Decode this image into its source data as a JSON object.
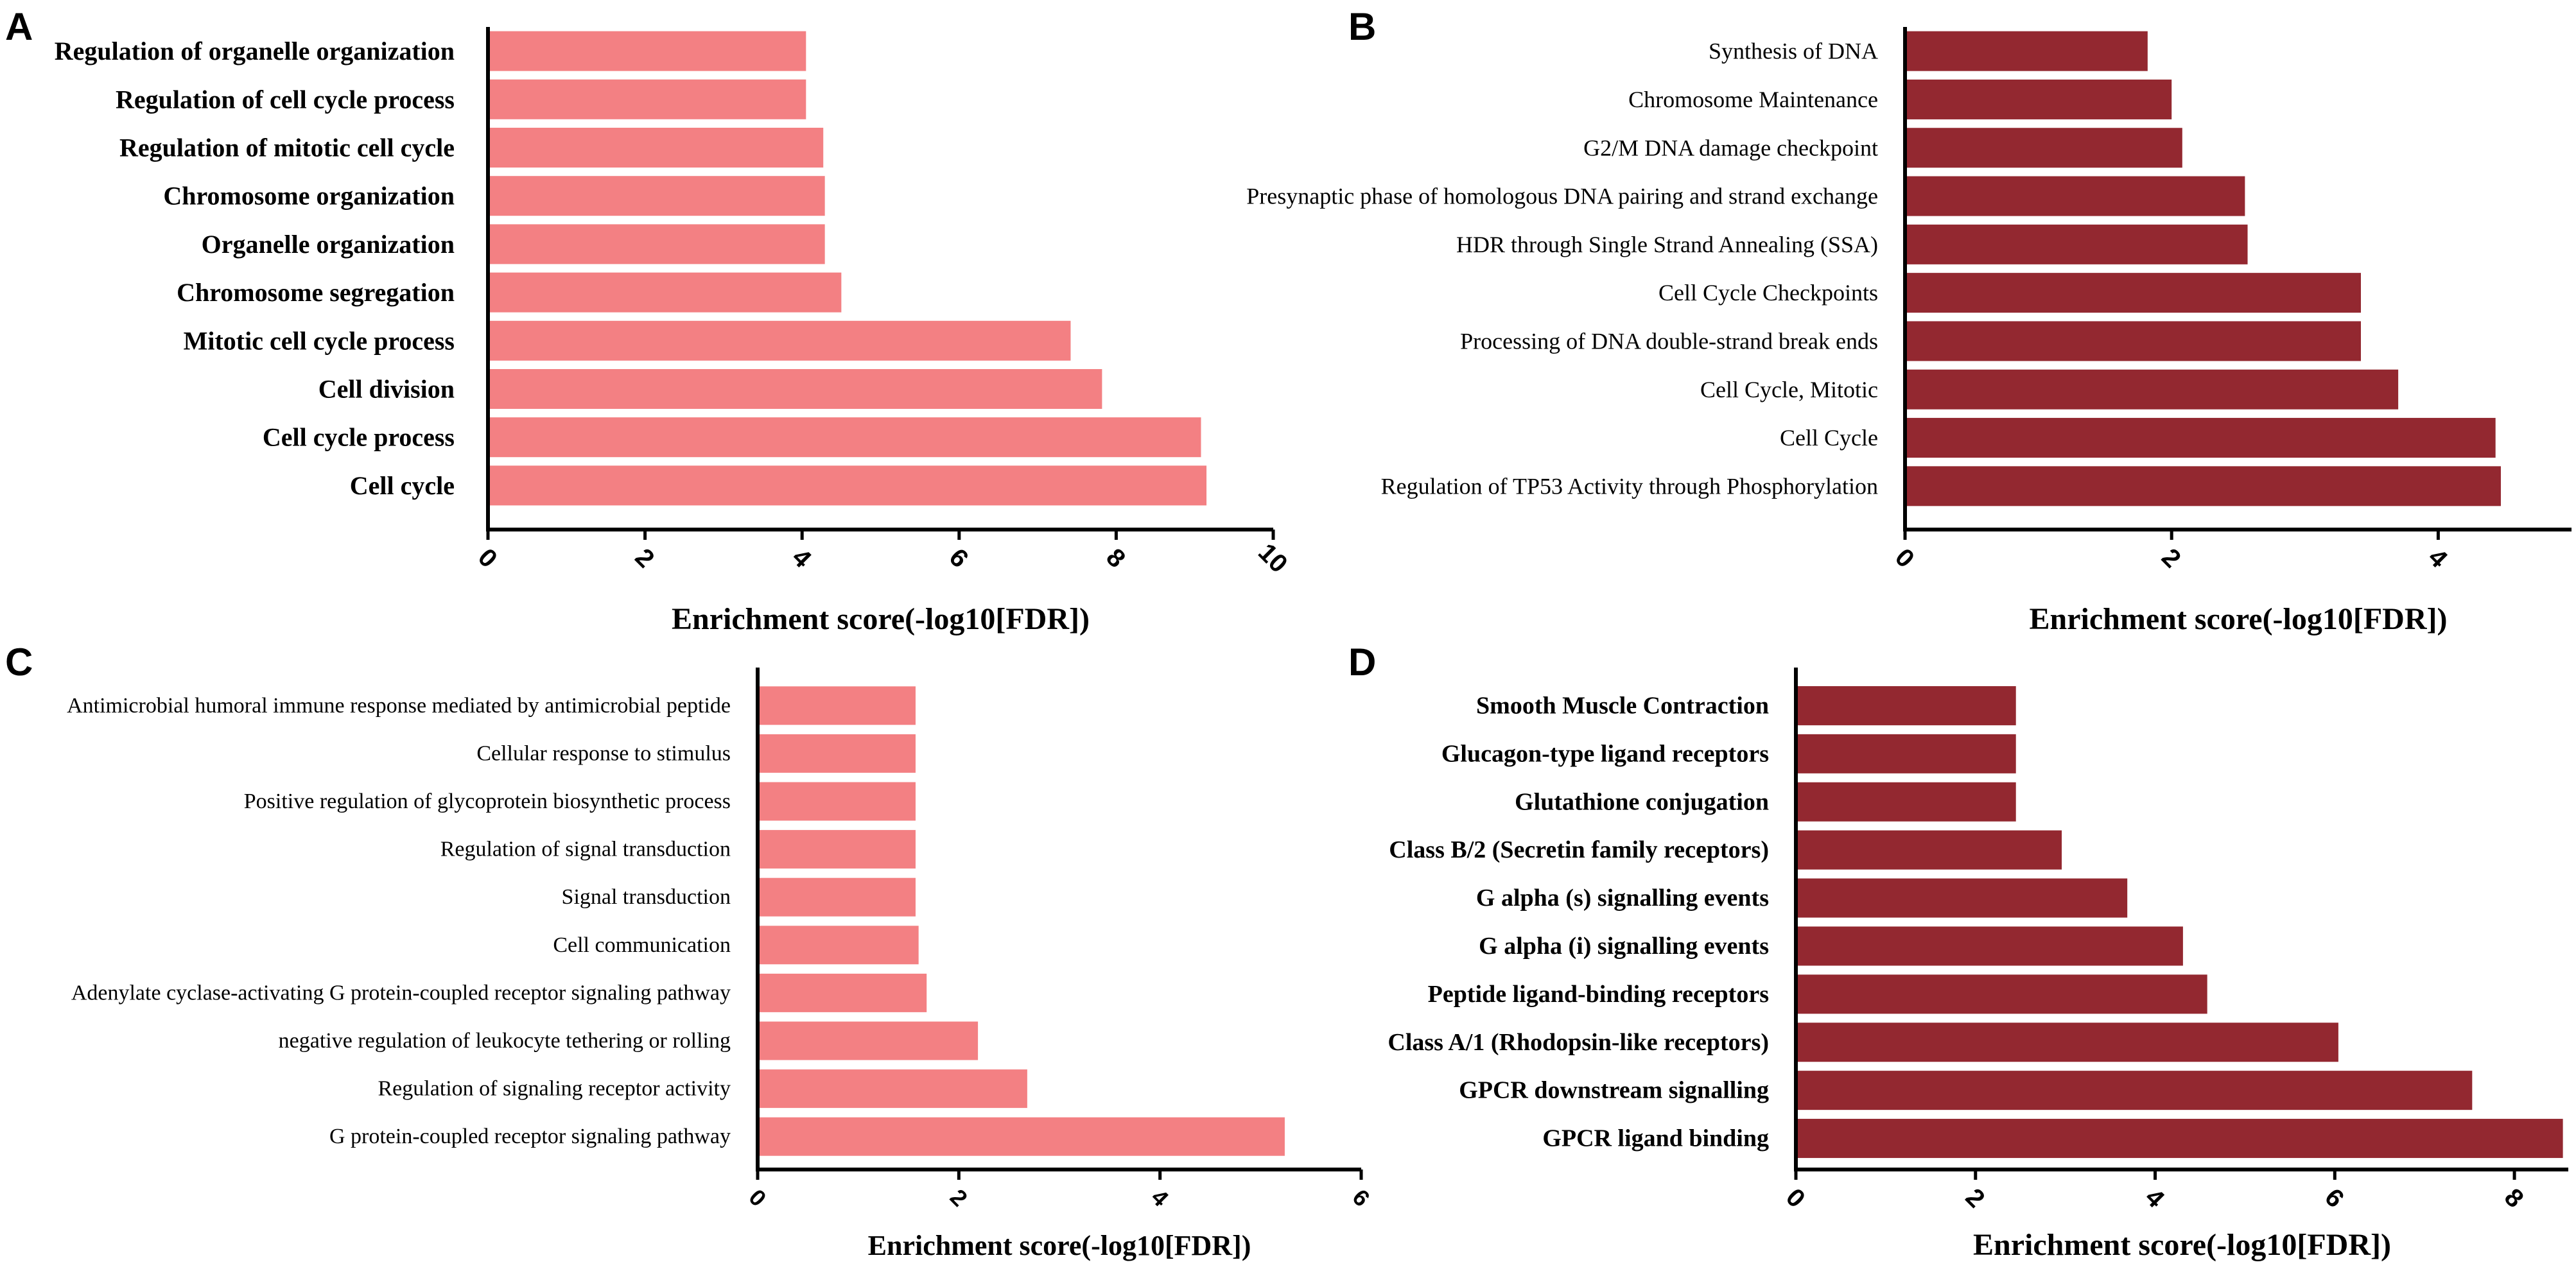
{
  "chart_data": [
    {
      "panel": "A",
      "type": "bar",
      "orientation": "horizontal",
      "bar_color": "#f38083",
      "categories": [
        "Regulation of organelle organization",
        "Regulation of cell cycle process",
        "Regulation of mitotic cell cycle",
        "Chromosome organization",
        "Organelle organization",
        "Chromosome segregation",
        "Mitotic cell cycle process",
        "Cell division",
        "Cell cycle process",
        "Cell cycle"
      ],
      "values": [
        4.05,
        4.05,
        4.27,
        4.29,
        4.29,
        4.5,
        7.42,
        7.82,
        9.08,
        9.15
      ],
      "xlabel": "Enrichment score(-log10[FDR])",
      "xlim": [
        0,
        10
      ],
      "xticks": [
        "0",
        "2",
        "4",
        "6",
        "8",
        "10"
      ]
    },
    {
      "panel": "B",
      "type": "bar",
      "orientation": "horizontal",
      "bar_color": "#932830",
      "categories": [
        "Synthesis of DNA",
        "Chromosome Maintenance",
        "G2/M DNA damage checkpoint",
        "Presynaptic phase of homologous DNA pairing and strand exchange",
        "HDR through Single Strand Annealing (SSA)",
        "Cell Cycle Checkpoints",
        "Processing of DNA double-strand break ends",
        "Cell Cycle, Mitotic",
        "Cell Cycle",
        "Regulation of TP53 Activity through Phosphorylation"
      ],
      "values": [
        1.82,
        2.0,
        2.08,
        2.55,
        2.57,
        3.42,
        3.42,
        3.7,
        4.43,
        4.47
      ],
      "xlabel": "Enrichment score(-log10[FDR])",
      "xlim": [
        0,
        5
      ],
      "xticks": [
        "0",
        "2",
        "4"
      ]
    },
    {
      "panel": "C",
      "type": "bar",
      "orientation": "horizontal",
      "bar_color": "#f38083",
      "categories": [
        "Antimicrobial humoral immune response mediated by antimicrobial peptide",
        "Cellular response to stimulus",
        "Positive regulation of glycoprotein biosynthetic process",
        "Regulation of signal transduction",
        "Signal transduction",
        "Cell communication",
        "Adenylate cyclase-activating G protein-coupled receptor signaling pathway",
        "negative regulation of leukocyte tethering or rolling",
        "Regulation of signaling receptor activity",
        "G protein-coupled receptor signaling pathway"
      ],
      "values": [
        1.57,
        1.57,
        1.57,
        1.57,
        1.57,
        1.6,
        1.68,
        2.19,
        2.68,
        5.24
      ],
      "xlabel": "Enrichment score(-log10[FDR])",
      "xlim": [
        0,
        6
      ],
      "xticks": [
        "0",
        "2",
        "4",
        "6"
      ]
    },
    {
      "panel": "D",
      "type": "bar",
      "orientation": "horizontal",
      "bar_color": "#932830",
      "categories": [
        "Smooth Muscle Contraction",
        "Glucagon-type ligand receptors",
        "Glutathione conjugation",
        "Class B/2 (Secretin family receptors)",
        "G alpha (s) signalling events",
        "G alpha (i) signalling events",
        "Peptide ligand-binding receptors",
        "Class A/1 (Rhodopsin-like receptors)",
        "GPCR downstream signalling",
        "GPCR ligand binding"
      ],
      "values": [
        2.45,
        2.45,
        2.45,
        2.96,
        3.69,
        4.31,
        4.58,
        6.04,
        7.53,
        8.54
      ],
      "xlabel": "Enrichment score(-log10[FDR])",
      "xlim": [
        0,
        8.6
      ],
      "xticks": [
        "0",
        "2",
        "4",
        "6",
        "8"
      ]
    }
  ]
}
